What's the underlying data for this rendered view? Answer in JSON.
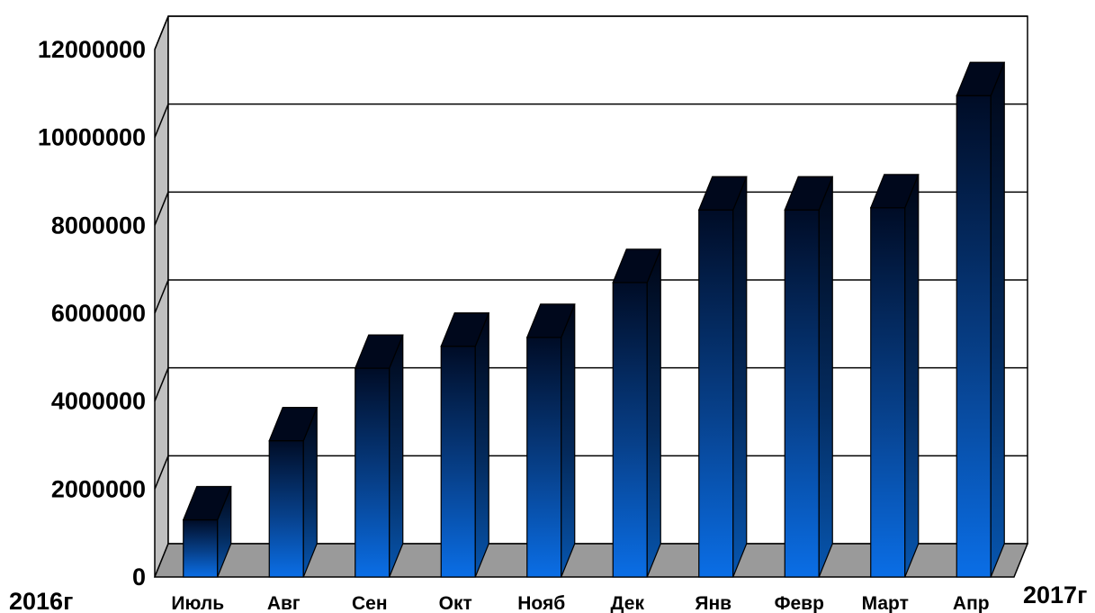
{
  "chart_data": {
    "type": "bar",
    "categories": [
      "Июль",
      "Авг",
      "Сен",
      "Окт",
      "Нояб",
      "Дек",
      "Янв",
      "Февр",
      "Март",
      "Апр"
    ],
    "values": [
      1300000,
      3100000,
      4750000,
      5250000,
      5450000,
      6700000,
      8350000,
      8350000,
      8400000,
      10950000
    ],
    "ylim": [
      0,
      12000000
    ],
    "yticks": [
      "0",
      "2000000",
      "4000000",
      "6000000",
      "8000000",
      "10000000",
      "12000000"
    ],
    "grid": true,
    "legend": "none",
    "x_start_label": "2016г",
    "x_end_label": "2017г"
  },
  "colors": {
    "bar_top": "#000c26",
    "bar_bottom": "#0a6ee6",
    "floor": "#9a9a9a",
    "wall": "#c0c0c0",
    "grid": "#000000"
  }
}
